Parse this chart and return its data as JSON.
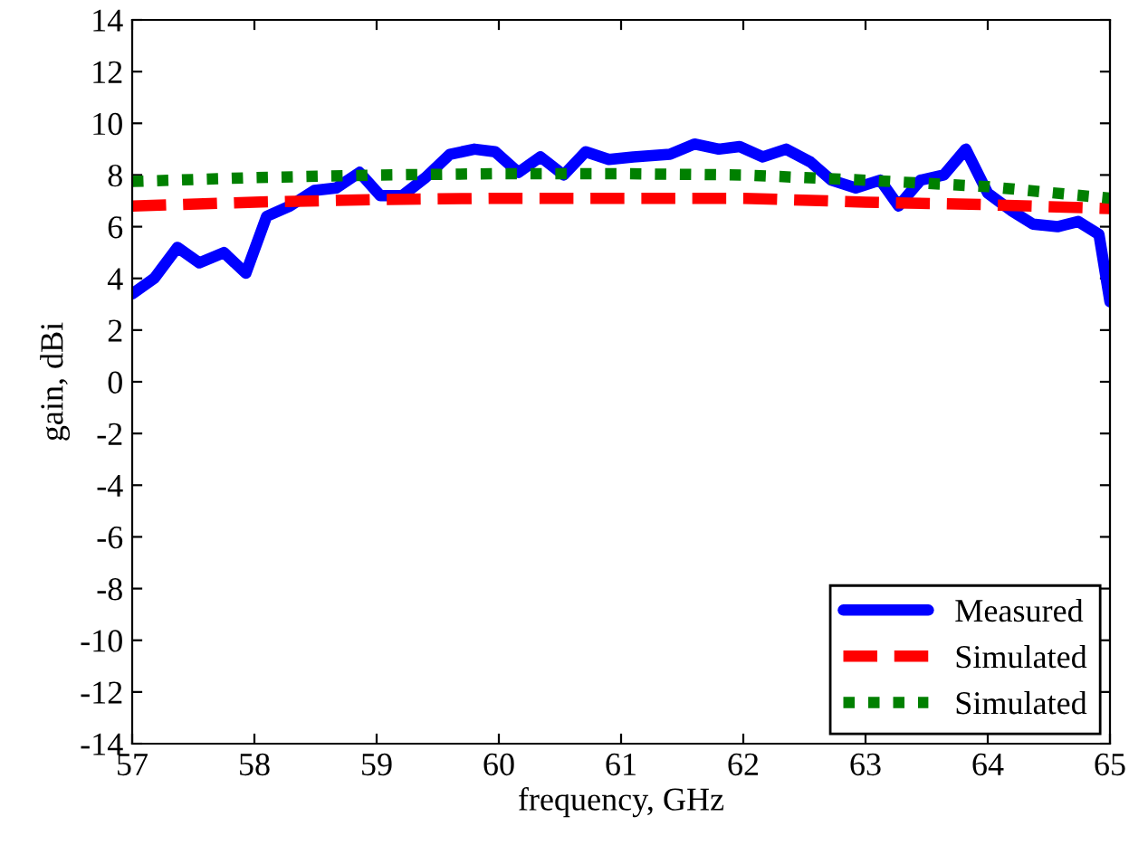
{
  "chart_data": {
    "type": "line",
    "xlabel": "frequency, GHz",
    "ylabel": "gain, dBi",
    "xlim": [
      57,
      65
    ],
    "xticks": [
      57,
      58,
      59,
      60,
      61,
      62,
      63,
      64,
      65
    ],
    "ylim": [
      -14,
      14
    ],
    "yticks": [
      -14,
      -12,
      -10,
      -8,
      -6,
      -4,
      -2,
      0,
      2,
      4,
      6,
      8,
      10,
      12,
      14
    ],
    "grid": false,
    "legend": "bottom right",
    "series": [
      {
        "name": "Measured",
        "color": "#0000ff",
        "line_style": "solid",
        "x": [
          57.0,
          57.18,
          57.37,
          57.55,
          57.75,
          57.93,
          58.1,
          58.29,
          58.49,
          58.67,
          58.86,
          59.03,
          59.21,
          59.4,
          59.6,
          59.8,
          59.97,
          60.16,
          60.34,
          60.53,
          60.71,
          60.9,
          61.1,
          61.4,
          61.6,
          61.8,
          61.97,
          62.16,
          62.35,
          62.55,
          62.72,
          62.92,
          63.12,
          63.27,
          63.45,
          63.64,
          63.82,
          64.0,
          64.2,
          64.37,
          64.57,
          64.74,
          64.91,
          65.0
        ],
        "values": [
          3.4,
          4.0,
          5.2,
          4.6,
          5.0,
          4.2,
          6.4,
          6.8,
          7.4,
          7.5,
          8.1,
          7.2,
          7.2,
          7.9,
          8.8,
          9.0,
          8.9,
          8.1,
          8.7,
          8.0,
          8.9,
          8.6,
          8.7,
          8.8,
          9.2,
          9.0,
          9.1,
          8.7,
          9.0,
          8.5,
          7.8,
          7.5,
          7.8,
          6.8,
          7.8,
          8.0,
          9.0,
          7.3,
          6.6,
          6.1,
          6.0,
          6.2,
          5.7,
          3.1
        ]
      },
      {
        "name": "Simulated",
        "color": "#ff0000",
        "line_style": "dashed",
        "x": [
          57,
          58,
          59,
          60,
          61,
          62,
          63,
          64,
          65
        ],
        "values": [
          6.8,
          6.95,
          7.05,
          7.1,
          7.1,
          7.1,
          6.95,
          6.85,
          6.7
        ]
      },
      {
        "name": "Simulated",
        "color": "#008000",
        "line_style": "dotted",
        "x": [
          57,
          58,
          59,
          60,
          61,
          62,
          63,
          64,
          65
        ],
        "values": [
          7.75,
          7.9,
          8.0,
          8.05,
          8.05,
          8.0,
          7.8,
          7.55,
          7.1
        ]
      }
    ]
  }
}
